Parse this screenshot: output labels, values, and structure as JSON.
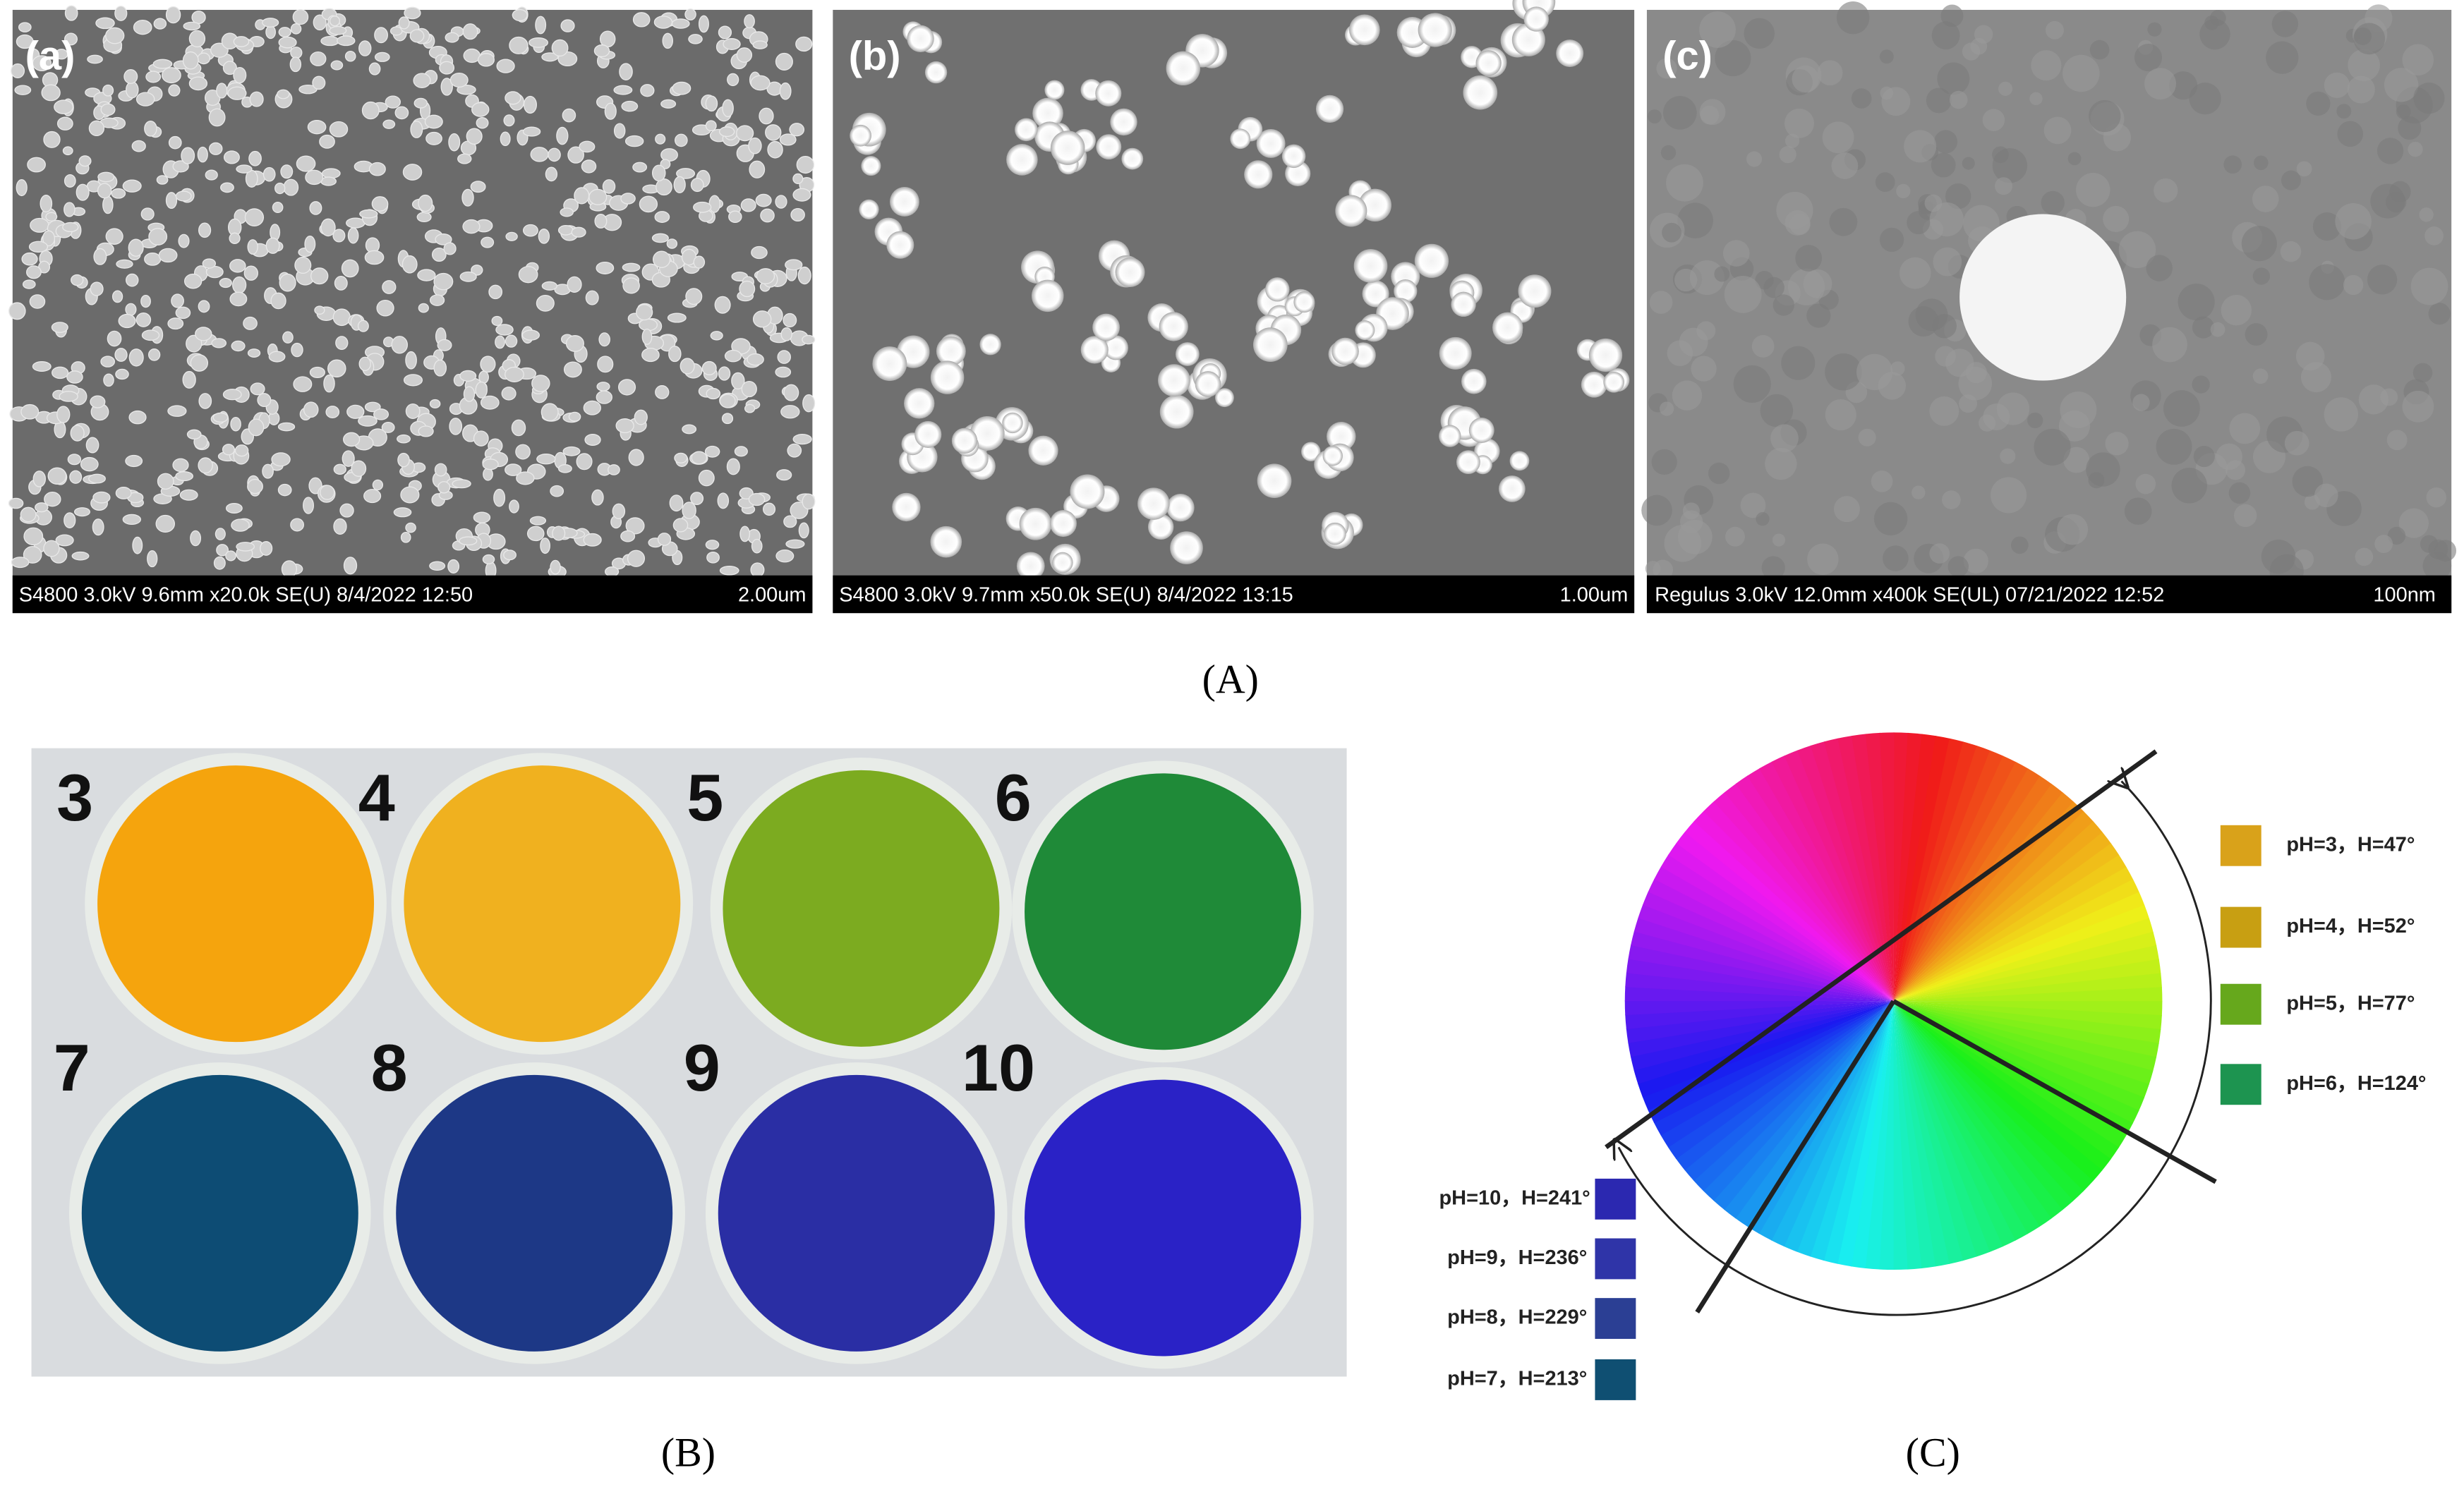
{
  "panel_A": {
    "label": "(A)",
    "images": [
      {
        "label": "(a)",
        "info": "S4800 3.0kV 9.6mm x20.0k SE(U) 8/4/2022 12:50",
        "scale": "2.00um"
      },
      {
        "label": "(b)",
        "info": "S4800 3.0kV 9.7mm x50.0k SE(U) 8/4/2022 13:15",
        "scale": "1.00um"
      },
      {
        "label": "(c)",
        "info": "Regulus 3.0kV 12.0mm x400k SE(UL) 07/21/2022 12:52",
        "scale": "100nm"
      }
    ]
  },
  "panel_B": {
    "label": "(B)",
    "wells": [
      "3",
      "4",
      "5",
      "6",
      "7",
      "8",
      "9",
      "10"
    ]
  },
  "panel_C": {
    "label": "(C)",
    "legend": [
      "pH=3，H=47°",
      "pH=4，H=52°",
      "pH=5，H=77°",
      "pH=6，H=124°",
      "pH=10，H=241°",
      "pH=9，H=236°",
      "pH=8，H=229°",
      "pH=7，H=213°"
    ]
  }
}
